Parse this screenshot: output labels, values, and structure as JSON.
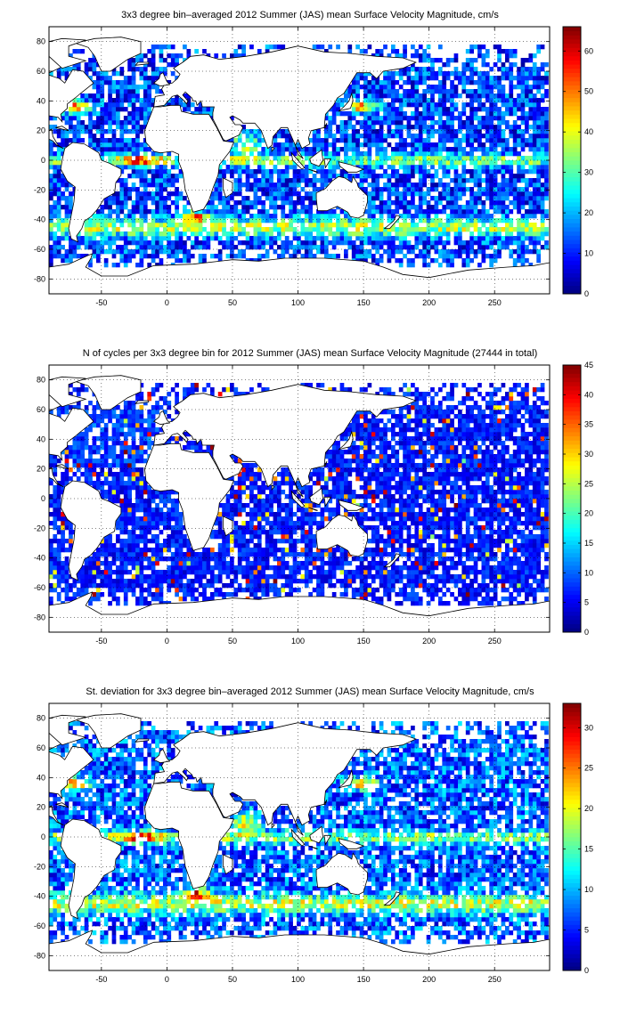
{
  "figure": {
    "panels": [
      {
        "title": "3x3 degree bin–averaged 2012 Summer (JAS) mean Surface Velocity Magnitude, cm/s",
        "colorbar_ticks": [
          "0",
          "10",
          "20",
          "30",
          "40",
          "50",
          "60"
        ],
        "colorbar_range": [
          0,
          66
        ]
      },
      {
        "title": "N of cycles per 3x3 degree bin for 2012 Summer (JAS) mean Surface Velocity Magnitude (27444 in total)",
        "colorbar_ticks": [
          "0",
          "5",
          "10",
          "15",
          "20",
          "25",
          "30",
          "35",
          "40",
          "45"
        ],
        "colorbar_range": [
          0,
          45
        ]
      },
      {
        "title": "St. deviation for 3x3 degree bin–averaged 2012 Summer (JAS) mean Surface Velocity Magnitude, cm/s",
        "colorbar_ticks": [
          "0",
          "5",
          "10",
          "15",
          "20",
          "25",
          "30"
        ],
        "colorbar_range": [
          0,
          33
        ]
      }
    ],
    "x_ticks": [
      "-50",
      "0",
      "50",
      "100",
      "150",
      "200",
      "250"
    ],
    "y_ticks": [
      "80",
      "60",
      "40",
      "20",
      "0",
      "-20",
      "-40",
      "-60",
      "-80"
    ],
    "colormap": "jet",
    "land_color": "#ffffff",
    "coast_color": "#000000",
    "grid": "dotted"
  },
  "chart_data": [
    {
      "type": "heatmap",
      "title": "3x3 degree bin–averaged 2012 Summer (JAS) mean Surface Velocity Magnitude, cm/s",
      "xlim": [
        -90,
        292
      ],
      "ylim": [
        -90,
        90
      ],
      "bin_size_deg": 3,
      "units": "cm/s",
      "value_range": [
        0,
        66
      ],
      "field": "bin-averaged surface velocity magnitude (gridded 3x3 degree global ocean field)"
    },
    {
      "type": "heatmap",
      "title": "N of cycles per 3x3 degree bin for 2012 Summer (JAS) mean Surface Velocity Magnitude (27444 in total)",
      "xlim": [
        -90,
        292
      ],
      "ylim": [
        -90,
        90
      ],
      "bin_size_deg": 3,
      "total": 27444,
      "value_range": [
        0,
        45
      ],
      "field": "number of cycles per bin (mostly 0-10)"
    },
    {
      "type": "heatmap",
      "title": "St. deviation for 3x3 degree bin–averaged 2012 Summer (JAS) mean Surface Velocity Magnitude, cm/s",
      "xlim": [
        -90,
        292
      ],
      "ylim": [
        -90,
        90
      ],
      "bin_size_deg": 3,
      "units": "cm/s",
      "value_range": [
        0,
        33
      ],
      "field": "standard deviation of surface velocity magnitude per bin"
    }
  ]
}
